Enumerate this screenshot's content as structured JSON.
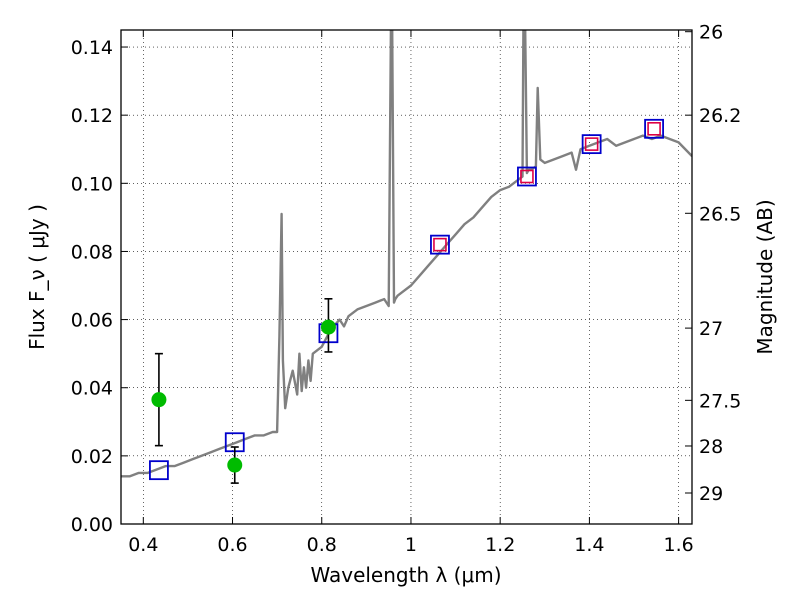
{
  "chart_data": {
    "type": "line",
    "xlabel": "Wavelength  λ (μm)",
    "ylabel": "Flux  F_ν  ( μJy )",
    "ylabel_right": "Magnitude (AB)",
    "xlim": [
      0.35,
      1.63
    ],
    "ylim": [
      0.0,
      0.145
    ],
    "grid": true,
    "x_ticks": [
      {
        "value": 0.4,
        "label": "0.4"
      },
      {
        "value": 0.6,
        "label": "0.6"
      },
      {
        "value": 0.8,
        "label": "0.8"
      },
      {
        "value": 1.0,
        "label": "1"
      },
      {
        "value": 1.2,
        "label": "1.2"
      },
      {
        "value": 1.4,
        "label": "1.4"
      },
      {
        "value": 1.6,
        "label": "1.6"
      }
    ],
    "y_ticks": [
      {
        "value": 0.0,
        "label": "0.00"
      },
      {
        "value": 0.02,
        "label": "0.02"
      },
      {
        "value": 0.04,
        "label": "0.04"
      },
      {
        "value": 0.06,
        "label": "0.06"
      },
      {
        "value": 0.08,
        "label": "0.08"
      },
      {
        "value": 0.1,
        "label": "0.10"
      },
      {
        "value": 0.12,
        "label": "0.12"
      },
      {
        "value": 0.14,
        "label": "0.14"
      }
    ],
    "mag_ticks": [
      {
        "flux": 0.1445,
        "label": "26"
      },
      {
        "flux": 0.12,
        "label": "26.2"
      },
      {
        "flux": 0.0912,
        "label": "26.5"
      },
      {
        "flux": 0.0575,
        "label": "27"
      },
      {
        "flux": 0.0363,
        "label": "27.5"
      },
      {
        "flux": 0.0229,
        "label": "28"
      },
      {
        "flux": 0.0091,
        "label": "29"
      }
    ],
    "series": [
      {
        "kind": "spectrum",
        "color": "#808080",
        "x": [
          0.35,
          0.37,
          0.39,
          0.41,
          0.43,
          0.45,
          0.47,
          0.49,
          0.51,
          0.53,
          0.55,
          0.57,
          0.59,
          0.61,
          0.63,
          0.65,
          0.67,
          0.69,
          0.7,
          0.705,
          0.71,
          0.713,
          0.718,
          0.725,
          0.735,
          0.745,
          0.75,
          0.755,
          0.76,
          0.765,
          0.77,
          0.775,
          0.78,
          0.8,
          0.82,
          0.84,
          0.85,
          0.86,
          0.88,
          0.9,
          0.92,
          0.94,
          0.95,
          0.955,
          0.958,
          0.962,
          0.965,
          0.97,
          0.98,
          1.0,
          1.02,
          1.04,
          1.06,
          1.08,
          1.1,
          1.12,
          1.14,
          1.16,
          1.18,
          1.2,
          1.22,
          1.24,
          1.25,
          1.252,
          1.256,
          1.26,
          1.264,
          1.27,
          1.28,
          1.284,
          1.29,
          1.3,
          1.32,
          1.34,
          1.36,
          1.37,
          1.38,
          1.4,
          1.42,
          1.44,
          1.46,
          1.48,
          1.5,
          1.52,
          1.54,
          1.56,
          1.58,
          1.6,
          1.63
        ],
        "y": [
          0.014,
          0.014,
          0.015,
          0.015,
          0.016,
          0.017,
          0.017,
          0.018,
          0.019,
          0.02,
          0.021,
          0.022,
          0.023,
          0.024,
          0.025,
          0.026,
          0.026,
          0.027,
          0.027,
          0.055,
          0.091,
          0.048,
          0.034,
          0.04,
          0.045,
          0.038,
          0.05,
          0.039,
          0.046,
          0.04,
          0.048,
          0.042,
          0.05,
          0.052,
          0.057,
          0.06,
          0.058,
          0.061,
          0.063,
          0.064,
          0.065,
          0.066,
          0.064,
          0.145,
          0.145,
          0.065,
          0.066,
          0.067,
          0.068,
          0.07,
          0.073,
          0.076,
          0.079,
          0.082,
          0.085,
          0.088,
          0.09,
          0.093,
          0.096,
          0.098,
          0.099,
          0.101,
          0.102,
          0.145,
          0.145,
          0.103,
          0.104,
          0.104,
          0.105,
          0.128,
          0.107,
          0.106,
          0.107,
          0.108,
          0.109,
          0.104,
          0.11,
          0.111,
          0.112,
          0.113,
          0.111,
          0.112,
          0.113,
          0.114,
          0.113,
          0.114,
          0.113,
          0.112,
          0.108
        ]
      },
      {
        "kind": "model_photometry",
        "marker": "open-square",
        "color": "#0000cc",
        "x": [
          0.435,
          0.605,
          0.815,
          1.065,
          1.26,
          1.405,
          1.545
        ],
        "y": [
          0.0158,
          0.024,
          0.056,
          0.082,
          0.102,
          0.1115,
          0.116
        ]
      },
      {
        "kind": "observed_photometry",
        "marker": "open-square",
        "color": "#dd0044",
        "x": [
          1.065,
          1.26,
          1.405,
          1.545
        ],
        "y": [
          0.082,
          0.102,
          0.1115,
          0.116
        ]
      },
      {
        "kind": "observed_photometry",
        "marker": "filled-circle",
        "color": "#00bb00",
        "x": [
          0.435,
          0.605,
          0.815
        ],
        "y": [
          0.0365,
          0.0173,
          0.0578
        ],
        "yerr_low": [
          0.0135,
          0.0053,
          0.0073
        ],
        "yerr_high": [
          0.0135,
          0.0053,
          0.0083
        ]
      }
    ]
  }
}
